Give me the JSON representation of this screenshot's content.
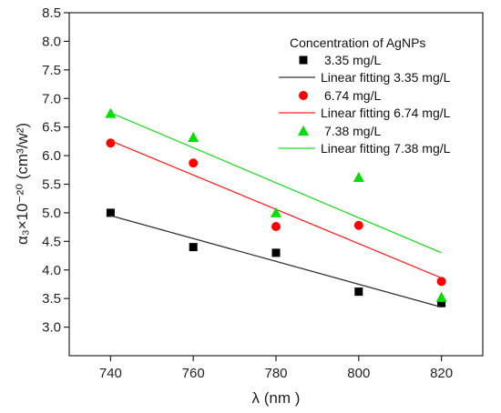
{
  "chart_data": {
    "type": "scatter",
    "x": [
      740,
      760,
      780,
      800,
      820
    ],
    "xlabel": "λ (nm )",
    "ylabel": "α₃×10⁻²⁰ (cm³/w²)",
    "xlim": [
      730,
      830
    ],
    "ylim": [
      2.5,
      8.5
    ],
    "x_ticks": [
      740,
      760,
      780,
      800,
      820
    ],
    "y_ticks": [
      3.0,
      3.5,
      4.0,
      4.5,
      5.0,
      5.5,
      6.0,
      6.5,
      7.0,
      7.5,
      8.0,
      8.5
    ],
    "grid": false,
    "legend_title": "Concentration of AgNPs",
    "legend_placement": "top-right",
    "series": [
      {
        "name": "3.35 mg/L",
        "kind": "points",
        "marker": "square",
        "color": "#000000",
        "values": [
          5.0,
          4.4,
          4.3,
          3.62,
          3.42
        ]
      },
      {
        "name": "Linear fitting 3.35 mg/L",
        "kind": "line",
        "color": "#333333",
        "values": [
          4.95,
          4.55,
          4.15,
          3.75,
          3.35
        ]
      },
      {
        "name": "6.74 mg/L",
        "kind": "points",
        "marker": "circle",
        "color": "#ff0000",
        "values": [
          6.22,
          5.87,
          4.76,
          4.78,
          3.8
        ]
      },
      {
        "name": "Linear fitting 6.74 mg/L",
        "kind": "line",
        "color": "#ff2020",
        "values": [
          6.26,
          5.66,
          5.06,
          4.46,
          3.86
        ]
      },
      {
        "name": "7.38 mg/L",
        "kind": "points",
        "marker": "triangle",
        "color": "#00e000",
        "values": [
          6.74,
          6.32,
          5.0,
          5.62,
          3.52
        ]
      },
      {
        "name": "Linear fitting 7.38 mg/L",
        "kind": "line",
        "color": "#22dd22",
        "values": [
          6.75,
          6.14,
          5.53,
          4.92,
          4.3
        ]
      }
    ]
  }
}
